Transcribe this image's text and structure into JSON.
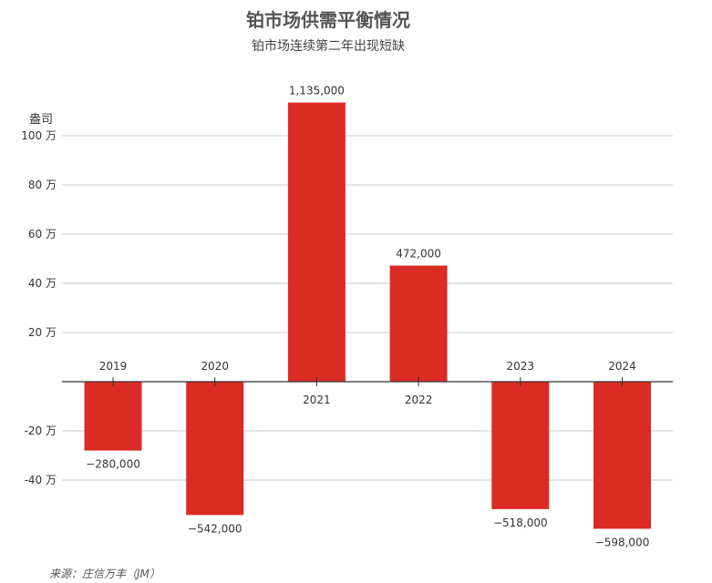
{
  "title": "铂市场供需平衡情况",
  "subtitle": "铂市场连续第二年出现短缺",
  "source": "来源：庄信万丰（JM）",
  "colors": {
    "bar": "#dc2b24",
    "grid": "#c8c8c8",
    "axis": "#333333"
  },
  "chart_data": {
    "type": "bar",
    "title": "铂市场供需平衡情况",
    "subtitle": "铂市场连续第二年出现短缺",
    "ylabel": "盎司",
    "categories": [
      "2019",
      "2020",
      "2021",
      "2022",
      "2023",
      "2024"
    ],
    "values": [
      -280000,
      -542000,
      1135000,
      472000,
      -518000,
      -598000
    ],
    "value_labels": [
      "−280,000",
      "−542,000",
      "1,135,000",
      "472,000",
      "−518,000",
      "−598,000"
    ],
    "yticks": [
      {
        "value": 1000000,
        "label": "100 万"
      },
      {
        "value": 800000,
        "label": "80 万"
      },
      {
        "value": 600000,
        "label": "60 万"
      },
      {
        "value": 400000,
        "label": "40 万"
      },
      {
        "value": 200000,
        "label": "20 万"
      },
      {
        "value": -200000,
        "label": "-20 万"
      },
      {
        "value": -400000,
        "label": "-40 万"
      }
    ],
    "ylim": [
      -650000,
      1150000
    ],
    "grid": true,
    "legend": "none"
  }
}
